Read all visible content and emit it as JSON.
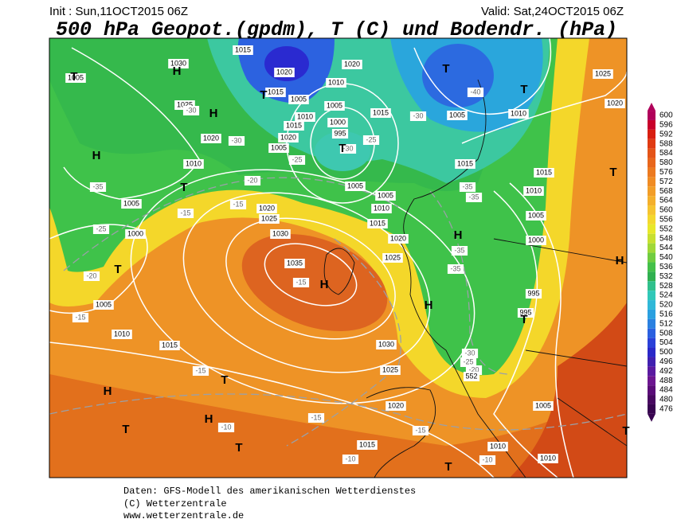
{
  "header": {
    "init": "Init : Sun,11OCT2015 06Z",
    "valid": "Valid: Sat,24OCT2015 06Z",
    "title": "500 hPa Geopot.(gpdm), T (C) und Bodendr. (hPa)"
  },
  "colorbar": {
    "labels": [
      600,
      596,
      592,
      588,
      584,
      580,
      576,
      572,
      568,
      564,
      560,
      556,
      552,
      548,
      544,
      540,
      536,
      532,
      528,
      524,
      520,
      516,
      512,
      508,
      504,
      500,
      496,
      492,
      488,
      484,
      480,
      476
    ]
  },
  "map_labels": [
    "1030",
    "1025",
    "1020",
    "1010",
    "1005",
    "1000",
    "1005",
    "1010",
    "1015",
    "1020",
    "1025",
    "1030",
    "1035",
    "1030",
    "1025",
    "1020",
    "1015",
    "1010",
    "1010",
    "1005",
    "995",
    "995",
    "1000",
    "1005",
    "1010",
    "1015",
    "1020",
    "1025",
    "1010",
    "1005",
    "1015",
    "1015",
    "1020",
    "1015",
    "1020",
    "1015",
    "1010",
    "1005",
    "1000",
    "995",
    "1005",
    "1005",
    "1010",
    "1015",
    "1020",
    "1025",
    "1005",
    "1015",
    "1020",
    "1005",
    "1010",
    "1005",
    "-30",
    "-30",
    "-30",
    "-25",
    "-30",
    "-40",
    "-25",
    "-20",
    "-35",
    "-25",
    "-20",
    "-15",
    "-15",
    "-15",
    "-15",
    "-15",
    "-10",
    "-15",
    "-15",
    "-10",
    "-10",
    "-35",
    "-35",
    "-35",
    "-35",
    "-30",
    "-25",
    "-20",
    "552"
  ],
  "markers": [
    "T",
    "H",
    "H",
    "H",
    "T",
    "T",
    "H",
    "T",
    "T",
    "T",
    "T",
    "H",
    "H",
    "T",
    "T",
    "H",
    "H",
    "T",
    "T",
    "H",
    "T",
    "T",
    "T"
  ],
  "footer": {
    "line1": "Daten: GFS-Modell des amerikanischen Wetterdienstes",
    "line2": "(C) Wetterzentrale",
    "line3": "www.wetterzentrale.de"
  }
}
